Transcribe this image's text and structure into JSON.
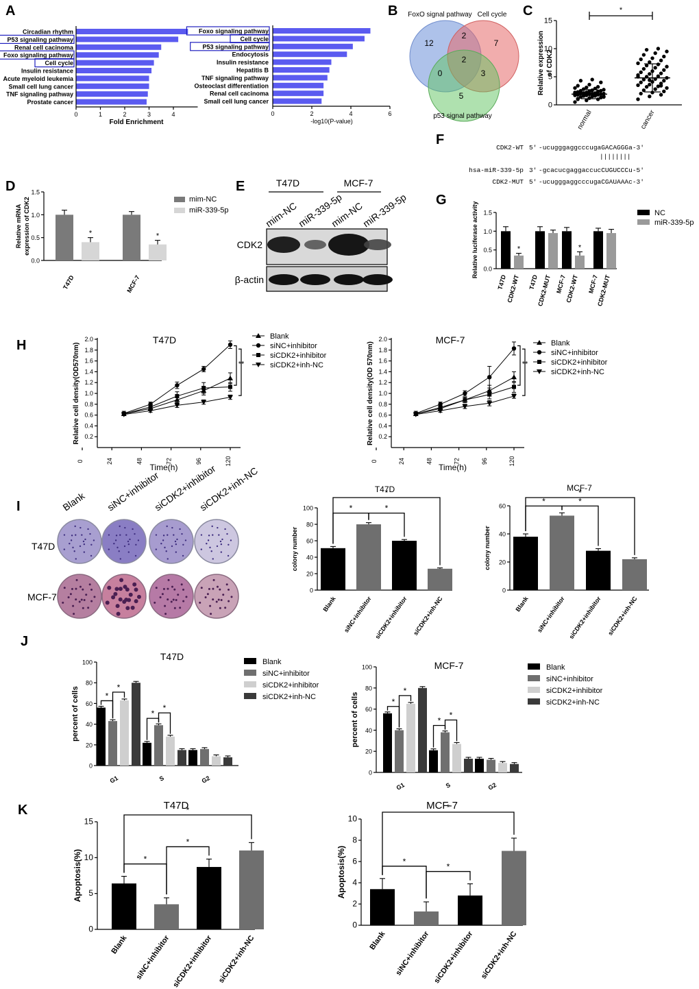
{
  "panel_labels": {
    "A": "A",
    "B": "B",
    "C": "C",
    "D": "D",
    "E": "E",
    "F": "F",
    "G": "G",
    "H": "H",
    "I": "I",
    "J": "J",
    "K": "K"
  },
  "colors": {
    "kegg_bar": "#5b5bf0",
    "highlight": "#1f1fbf",
    "venn_foxo": "#6c8fd9",
    "venn_cell": "#e56a6a",
    "venn_p53": "#5fc45f",
    "dark": "#000000",
    "mid": "#6f6f6f",
    "light": "#cfcfcf",
    "dark2": "#3a3a3a"
  },
  "chart_data": [
    {
      "id": "A1",
      "type": "bar",
      "orientation": "horizontal",
      "categories": [
        "Circadian rhythm",
        "P53 signaling pathway",
        "Renal cell cacinoma",
        "Foxo signaling pathway",
        "Cell cycle",
        "Insulin resistance",
        "Acute myeloid leukemia",
        "Small cell lung cancer",
        "TNF signaling pathway",
        "Prostate cancer"
      ],
      "values": [
        4.6,
        4.2,
        3.5,
        3.4,
        3.2,
        3.1,
        3.0,
        3.0,
        2.95,
        2.9
      ],
      "highlighted": [
        "P53 signaling pathway",
        "Foxo signaling pathway",
        "Cell cycle"
      ],
      "xlabel": "Fold Enrichment",
      "xlim": [
        0,
        5
      ],
      "xticks": [
        "0",
        "1",
        "2",
        "3",
        "4"
      ]
    },
    {
      "id": "A2",
      "type": "bar",
      "orientation": "horizontal",
      "categories": [
        "Foxo signaling pathway",
        "Cell cycle",
        "P53 signaling pathway",
        "Endocytosis",
        "Insulin resistance",
        "Hepatitis B",
        "TNF signaling pathway",
        "Osteoclast differentiation",
        "Renal cell cacinoma",
        "Small cell lung cancer"
      ],
      "values": [
        5.0,
        4.7,
        4.1,
        3.8,
        3.0,
        2.9,
        2.8,
        2.6,
        2.6,
        2.5
      ],
      "highlighted": [
        "Foxo signaling pathway",
        "Cell cycle",
        "P53 signaling pathway"
      ],
      "xlabel": "-log10(P-value)",
      "xlim": [
        0,
        6
      ],
      "xticks": [
        "0",
        "2",
        "4",
        "6"
      ]
    },
    {
      "id": "B",
      "type": "venn",
      "sets": [
        "FoxO signal pathway",
        "Cell cycle",
        "p53 signal pathway"
      ],
      "regions": {
        "foxo_only": "12",
        "cell_only": "7",
        "p53_only": "5",
        "foxo_cell": "2",
        "foxo_p53": "0",
        "cell_p53": "3",
        "all": "2"
      }
    },
    {
      "id": "C",
      "type": "scatter",
      "categories": [
        "normal",
        "cancer"
      ],
      "means": [
        1.9,
        4.8
      ],
      "sd": [
        0.8,
        2.5
      ],
      "normal_values": [
        0.5,
        0.8,
        1.0,
        1.1,
        1.2,
        1.3,
        1.4,
        1.5,
        1.5,
        1.6,
        1.6,
        1.7,
        1.7,
        1.8,
        1.8,
        1.9,
        1.9,
        2.0,
        2.0,
        2.0,
        2.1,
        2.1,
        2.2,
        2.2,
        2.3,
        2.3,
        2.4,
        2.5,
        2.5,
        2.6,
        2.7,
        2.8,
        2.9,
        3.0,
        3.1,
        3.2,
        3.4,
        3.6,
        4.0,
        4.3,
        4.5,
        1.4,
        1.6,
        1.8,
        2.0,
        2.2,
        2.4,
        1.0
      ],
      "cancer_values": [
        1.0,
        1.5,
        1.8,
        2.0,
        2.2,
        2.4,
        2.6,
        2.8,
        3.0,
        3.2,
        3.3,
        3.5,
        3.6,
        3.8,
        4.0,
        4.1,
        4.3,
        4.5,
        4.6,
        4.8,
        5.0,
        5.1,
        5.3,
        5.5,
        5.6,
        5.8,
        6.0,
        6.2,
        6.4,
        6.6,
        6.8,
        7.0,
        7.2,
        7.4,
        7.6,
        7.9,
        8.1,
        8.3,
        8.6,
        8.9,
        9.2,
        9.5,
        9.8,
        10.0,
        5.0,
        4.4,
        3.4
      ],
      "ylabel": "Relative expression of CDK2",
      "ylim": [
        0,
        15
      ],
      "yticks": [
        "0",
        "5",
        "10",
        "15"
      ],
      "sig": "*"
    },
    {
      "id": "D",
      "type": "bar",
      "categories": [
        "T47D",
        "MCF-7"
      ],
      "series": [
        {
          "name": "mim-NC",
          "values": [
            1.0,
            1.0
          ],
          "err": [
            0.1,
            0.07
          ]
        },
        {
          "name": "miR-339-5p",
          "values": [
            0.4,
            0.35
          ],
          "err": [
            0.1,
            0.09
          ]
        }
      ],
      "ylabel": "Relative mRNA expression of CDK2",
      "ylim": [
        0,
        1.5
      ],
      "yticks": [
        "0.0",
        "0.5",
        "1.0",
        "1.5"
      ],
      "sig": "*"
    },
    {
      "id": "G",
      "type": "bar",
      "categories": [
        "T47D CDK2-WT",
        "T47D CDK2-MUT",
        "MCF-7 CDK2-WT",
        "MCF-7 CDK2-MUT"
      ],
      "series": [
        {
          "name": "NC",
          "values": [
            1.0,
            1.0,
            1.0,
            1.0
          ],
          "err": [
            0.12,
            0.12,
            0.1,
            0.08
          ]
        },
        {
          "name": "miR-339-5p",
          "values": [
            0.35,
            0.95,
            0.35,
            0.95
          ],
          "err": [
            0.06,
            0.08,
            0.1,
            0.1
          ]
        }
      ],
      "ylabel": "Relative luciferase activity",
      "ylim": [
        0,
        1.5
      ],
      "yticks": [
        "0.0",
        "0.5",
        "1.0",
        "1.5"
      ],
      "sig": "*"
    },
    {
      "id": "H1",
      "type": "line",
      "title": "T47D",
      "x": [
        24,
        48,
        72,
        96,
        120
      ],
      "series": [
        {
          "name": "Blank",
          "values": [
            0.62,
            0.72,
            0.88,
            1.05,
            1.28
          ],
          "err": [
            0.03,
            0.03,
            0.05,
            0.08,
            0.1
          ]
        },
        {
          "name": "siNC+inhibitor",
          "values": [
            0.63,
            0.8,
            1.15,
            1.45,
            1.9
          ],
          "err": [
            0.04,
            0.04,
            0.06,
            0.05,
            0.07
          ]
        },
        {
          "name": "siCDK2+inhibitor",
          "values": [
            0.62,
            0.75,
            0.95,
            1.1,
            1.12
          ],
          "err": [
            0.03,
            0.04,
            0.08,
            0.1,
            0.08
          ]
        },
        {
          "name": "siCDK2+inh-NC",
          "values": [
            0.61,
            0.68,
            0.78,
            0.84,
            0.93
          ],
          "err": [
            0.02,
            0.03,
            0.04,
            0.04,
            0.04
          ]
        }
      ],
      "xlabel": "Time(h)",
      "ylabel": "Relative cell density(OD570nm)",
      "ylim": [
        0,
        2.0
      ],
      "yticks": [
        "0.2",
        "0.4",
        "0.6",
        "0.8",
        "1.0",
        "1.2",
        "1.4",
        "1.6",
        "1.8",
        "2.0"
      ],
      "xticks": [
        "0",
        "24",
        "48",
        "72",
        "96",
        "120"
      ],
      "sig": "**"
    },
    {
      "id": "H2",
      "type": "line",
      "title": "MCF-7",
      "x": [
        24,
        48,
        72,
        96,
        120
      ],
      "series": [
        {
          "name": "Blank",
          "values": [
            0.62,
            0.72,
            0.88,
            1.05,
            1.3
          ],
          "err": [
            0.03,
            0.03,
            0.05,
            0.1,
            0.1
          ]
        },
        {
          "name": "siNC+inhibitor",
          "values": [
            0.63,
            0.8,
            1.0,
            1.3,
            1.83
          ],
          "err": [
            0.04,
            0.04,
            0.05,
            0.2,
            0.12
          ]
        },
        {
          "name": "siCDK2+inhibitor",
          "values": [
            0.62,
            0.74,
            0.88,
            0.98,
            1.12
          ],
          "err": [
            0.03,
            0.03,
            0.05,
            0.08,
            0.1
          ]
        },
        {
          "name": "siCDK2+inh-NC",
          "values": [
            0.61,
            0.68,
            0.76,
            0.82,
            0.95
          ],
          "err": [
            0.02,
            0.03,
            0.04,
            0.05,
            0.04
          ]
        }
      ],
      "xlabel": "Time(h)",
      "ylabel": "Relative cell density(OD 570nm)",
      "ylim": [
        0,
        2.0
      ],
      "yticks": [
        "0.2",
        "0.4",
        "0.6",
        "0.8",
        "1.0",
        "1.2",
        "1.4",
        "1.6",
        "1.8",
        "2.0"
      ],
      "xticks": [
        "0",
        "24",
        "48",
        "72",
        "96",
        "120"
      ],
      "sig": "**"
    },
    {
      "id": "I1",
      "type": "bar",
      "title": "T47D",
      "categories": [
        "Blank",
        "siNC+inhibitor",
        "siCDK2+inhibitor",
        "siCDK2+inh-NC"
      ],
      "values": [
        51,
        80,
        60,
        26
      ],
      "err": [
        2,
        2,
        1.5,
        1
      ],
      "colors": [
        "#000000",
        "#6f6f6f",
        "#000000",
        "#6f6f6f"
      ],
      "ylabel": "colony number",
      "ylim": [
        0,
        100
      ],
      "yticks": [
        "0",
        "20",
        "40",
        "60",
        "80",
        "100"
      ],
      "sig": "*"
    },
    {
      "id": "I2",
      "type": "bar",
      "title": "MCF-7",
      "categories": [
        "Blank",
        "siNC+inhibitor",
        "siCDK2+inhibitor",
        "siCDK2+inh-NC"
      ],
      "values": [
        38,
        53,
        28,
        22
      ],
      "err": [
        2,
        2,
        1.5,
        1
      ],
      "colors": [
        "#000000",
        "#6f6f6f",
        "#000000",
        "#6f6f6f"
      ],
      "ylabel": "colony number",
      "ylim": [
        0,
        60
      ],
      "yticks": [
        "0",
        "20",
        "40",
        "60"
      ],
      "sig": "*"
    },
    {
      "id": "J1",
      "type": "bar",
      "title": "T47D",
      "categories": [
        "G1",
        "S",
        "G2"
      ],
      "series": [
        {
          "name": "Blank",
          "values": [
            56,
            22,
            15
          ]
        },
        {
          "name": "siNC+inhibitor",
          "values": [
            43,
            39,
            16
          ]
        },
        {
          "name": "siCDK2+inhibitor",
          "values": [
            63,
            28,
            9
          ]
        },
        {
          "name": "siCDK2+inh-NC",
          "values": [
            80,
            15,
            8
          ]
        }
      ],
      "ylabel": "percent of cells",
      "ylim": [
        0,
        100
      ],
      "yticks": [
        "0",
        "20",
        "40",
        "60",
        "80",
        "100"
      ],
      "sig": "*"
    },
    {
      "id": "J2",
      "type": "bar",
      "title": "MCF-7",
      "categories": [
        "G1",
        "S",
        "G2"
      ],
      "series": [
        {
          "name": "Blank",
          "values": [
            56,
            21,
            13
          ]
        },
        {
          "name": "siNC+inhibitor",
          "values": [
            40,
            38,
            12
          ]
        },
        {
          "name": "siCDK2+inhibitor",
          "values": [
            65,
            27,
            9
          ]
        },
        {
          "name": "siCDK2+inh-NC",
          "values": [
            80,
            13,
            8
          ]
        }
      ],
      "ylabel": "percent of cells",
      "ylim": [
        0,
        100
      ],
      "yticks": [
        "0",
        "20",
        "40",
        "60",
        "80",
        "100"
      ],
      "sig": "*"
    },
    {
      "id": "K1",
      "type": "bar",
      "title": "T47D",
      "categories": [
        "Blank",
        "siNC+inhibitor",
        "siCDK2+inhibitor",
        "siCDK2+inh-NC"
      ],
      "values": [
        6.4,
        3.5,
        8.7,
        11.0
      ],
      "err": [
        1.0,
        0.9,
        1.1,
        1.1
      ],
      "colors": [
        "#000000",
        "#6f6f6f",
        "#000000",
        "#6f6f6f"
      ],
      "ylabel": "Apoptosis(%)",
      "ylim": [
        0,
        15
      ],
      "yticks": [
        "0",
        "5",
        "10",
        "15"
      ],
      "sig": "*"
    },
    {
      "id": "K2",
      "type": "bar",
      "title": "MCF-7",
      "categories": [
        "Blank",
        "siNC+inhibitor",
        "siCDK2+inhibitor",
        "siCDK2+inh-NC"
      ],
      "values": [
        3.4,
        1.3,
        2.8,
        7.0
      ],
      "err": [
        1.0,
        0.9,
        1.1,
        1.2
      ],
      "colors": [
        "#000000",
        "#6f6f6f",
        "#000000",
        "#6f6f6f"
      ],
      "ylabel": "Apoptosis(%)",
      "ylim": [
        0,
        10
      ],
      "yticks": [
        "0",
        "2",
        "4",
        "6",
        "8",
        "10"
      ],
      "sig": "*"
    }
  ],
  "blot": {
    "groups": [
      "T47D",
      "MCF-7"
    ],
    "lanes": [
      "mim-NC",
      "miR-339-5p",
      "mim-NC",
      "miR-339-5p"
    ],
    "rows": [
      "CDK2",
      "β-actin"
    ]
  },
  "seq": {
    "lines": [
      {
        "name": "CDK2-WT",
        "prefix": "5'",
        "seq": "-ucugggaggcccugaGACAGGGa-3'"
      },
      {
        "name": "",
        "prefix": "",
        "seq": "||||||||"
      },
      {
        "name": "hsa-miR-339-5p",
        "prefix": "3'",
        "seq": "-gcacucgaggaccucCUGUCCCu-5'"
      },
      {
        "name": "CDK2-MUT",
        "prefix": "5'",
        "seq": "-ucugggaggcccugaCGAUAAAc-3'"
      }
    ]
  },
  "colony": {
    "columns": [
      "Blank",
      "siNC+inhibitor",
      "siCDK2+inhibitor",
      "siCDK2+inh-NC"
    ],
    "rows": [
      "T47D",
      "MCF-7"
    ]
  },
  "axis_text": {
    "C_normal": "normal",
    "C_cancer": "cancer"
  }
}
